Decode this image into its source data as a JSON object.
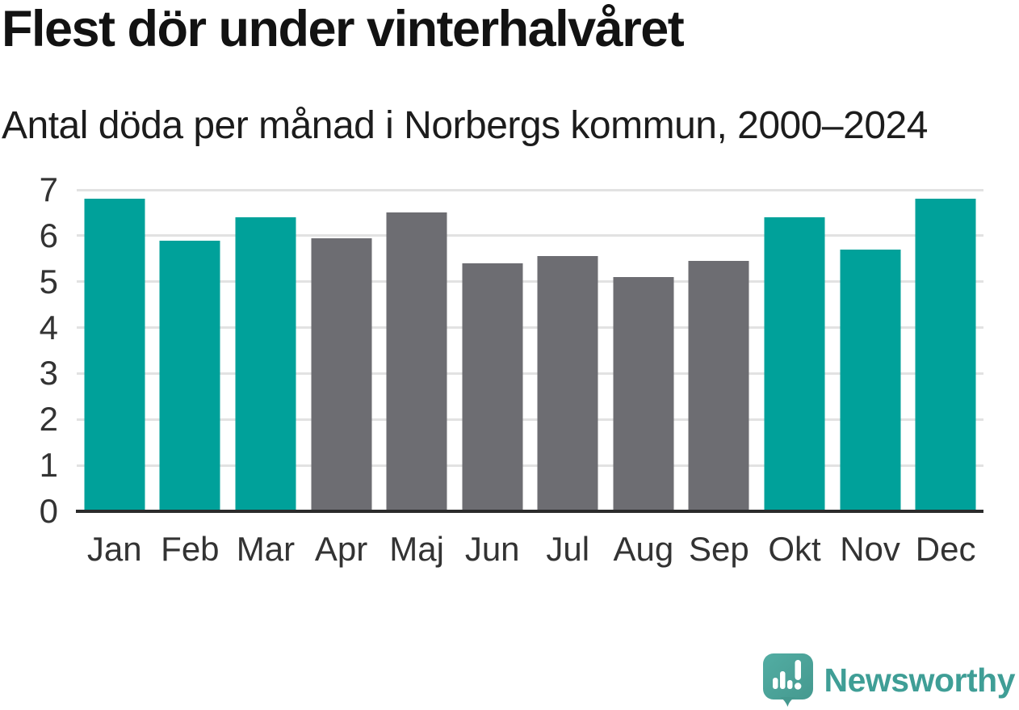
{
  "chart_data": {
    "type": "bar",
    "title": "Flest dör under vinterhalvåret",
    "subtitle": "Antal döda per månad i Norbergs kommun, 2000–2024",
    "categories": [
      "Jan",
      "Feb",
      "Mar",
      "Apr",
      "Maj",
      "Jun",
      "Jul",
      "Aug",
      "Sep",
      "Okt",
      "Nov",
      "Dec"
    ],
    "values": [
      6.8,
      5.9,
      6.4,
      5.95,
      6.5,
      5.4,
      5.55,
      5.1,
      5.45,
      6.4,
      5.7,
      6.8
    ],
    "groups": [
      "winter",
      "winter",
      "winter",
      "summer",
      "summer",
      "summer",
      "summer",
      "summer",
      "summer",
      "winter",
      "winter",
      "winter"
    ],
    "colors": {
      "winter": "#00a19a",
      "summer": "#6d6d72"
    },
    "xlabel": "",
    "ylabel": "",
    "ylim": [
      0,
      7
    ],
    "yticks": [
      0,
      1,
      2,
      3,
      4,
      5,
      6,
      7
    ],
    "grid": true,
    "legend": "none",
    "axis_color": "#2b2b2b",
    "gridline_color": "#e2e2e2",
    "tick_label_color": "#333333"
  },
  "branding": {
    "wordmark": "Newsworthy",
    "logo_bubble_color": "#4ba79d",
    "logo_bubble_shade": "#45998f",
    "logo_mark_color": "#ffffff",
    "wordmark_color": "#3f9e96"
  }
}
